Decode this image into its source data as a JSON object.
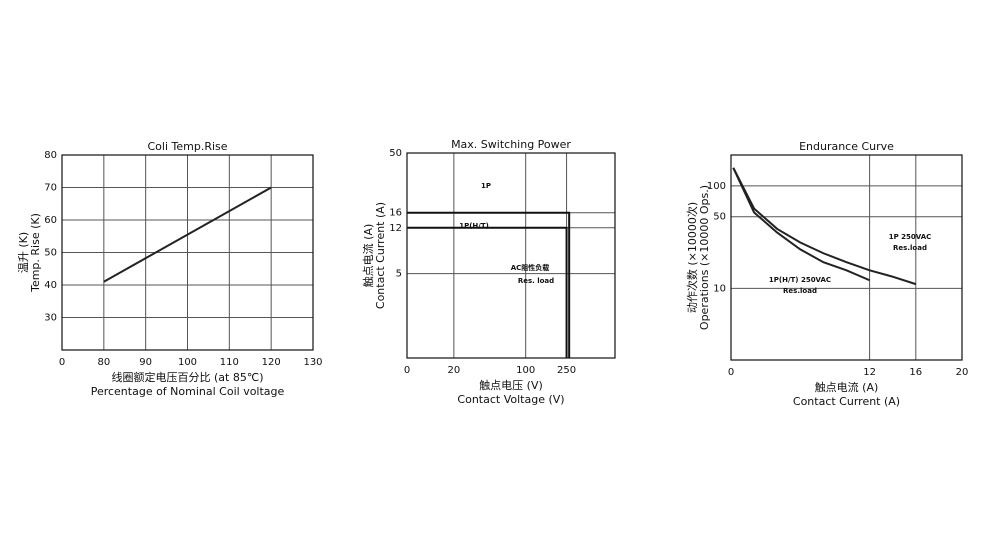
{
  "chart_data": [
    {
      "type": "line",
      "title": "Coli Temp.Rise",
      "ylabel": [
        "温升 (K)",
        "Temp. Rise (K)"
      ],
      "xlabel": [
        "线圈额定电压百分比 (at 85℃)",
        "Percentage of Nominal Coil voltage"
      ],
      "xlim": [
        70,
        130
      ],
      "xticks": [
        {
          "value": 70,
          "label": "0"
        },
        80,
        90,
        100,
        110,
        120,
        130
      ],
      "ylim": [
        20,
        80
      ],
      "yticks": [
        30,
        40,
        50,
        60,
        70,
        80
      ],
      "grid": true,
      "series": [
        {
          "name": null,
          "color": "#222222",
          "x": [
            80,
            120
          ],
          "values": [
            41,
            70
          ]
        }
      ],
      "annotations": []
    },
    {
      "type": "line",
      "title": "Max. Switching Power",
      "ylabel": [
        "触点电流 (A)",
        "Contact Current (A)"
      ],
      "xlabel": [
        "触点电压 (V)",
        "Contact Voltage (V)"
      ],
      "xscale": "log",
      "yscale": "log",
      "xlim": [
        7,
        740
      ],
      "xticks": [
        {
          "value": 7,
          "label": "0"
        },
        20,
        100,
        250
      ],
      "ylim": [
        1,
        50
      ],
      "yticks": [
        5,
        12,
        16,
        50
      ],
      "grid": true,
      "series": [
        {
          "name": null,
          "color": "#111111",
          "x": [
            7,
            265,
            265
          ],
          "values": [
            16,
            16,
            1
          ]
        },
        {
          "name": null,
          "color": "#111111",
          "x": [
            7,
            250,
            250
          ],
          "values": [
            12,
            12,
            1
          ]
        }
      ],
      "annotations": [
        "1P",
        "1P(H/T)",
        "AC阻性负载",
        "Res. load"
      ]
    },
    {
      "type": "line",
      "title": "Endurance Curve",
      "ylabel": [
        "动作次数 (×10000次)",
        "Operations (×10000 Ops.)"
      ],
      "xlabel": [
        "触点电流 (A)",
        "Contact Current (A)"
      ],
      "yscale": "log",
      "xlim": [
        0,
        20
      ],
      "xticks": [
        0,
        12,
        16,
        20
      ],
      "ylim": [
        2,
        200
      ],
      "yticks": [
        10,
        50,
        100
      ],
      "grid": true,
      "series": [
        {
          "name": null,
          "color": "#222222",
          "x": [
            0.2,
            2,
            4,
            6,
            8,
            10,
            12,
            14,
            16
          ],
          "values": [
            150,
            60,
            38,
            28,
            22,
            18,
            15,
            13,
            11
          ]
        },
        {
          "name": null,
          "color": "#222222",
          "x": [
            0.2,
            2,
            4,
            6,
            8,
            10,
            12
          ],
          "values": [
            150,
            55,
            35,
            24,
            18,
            15,
            12
          ]
        }
      ],
      "annotations": [
        "1P 250VAC",
        "Res.load",
        "1P(H/T) 250VAC",
        "Res.load"
      ]
    }
  ]
}
